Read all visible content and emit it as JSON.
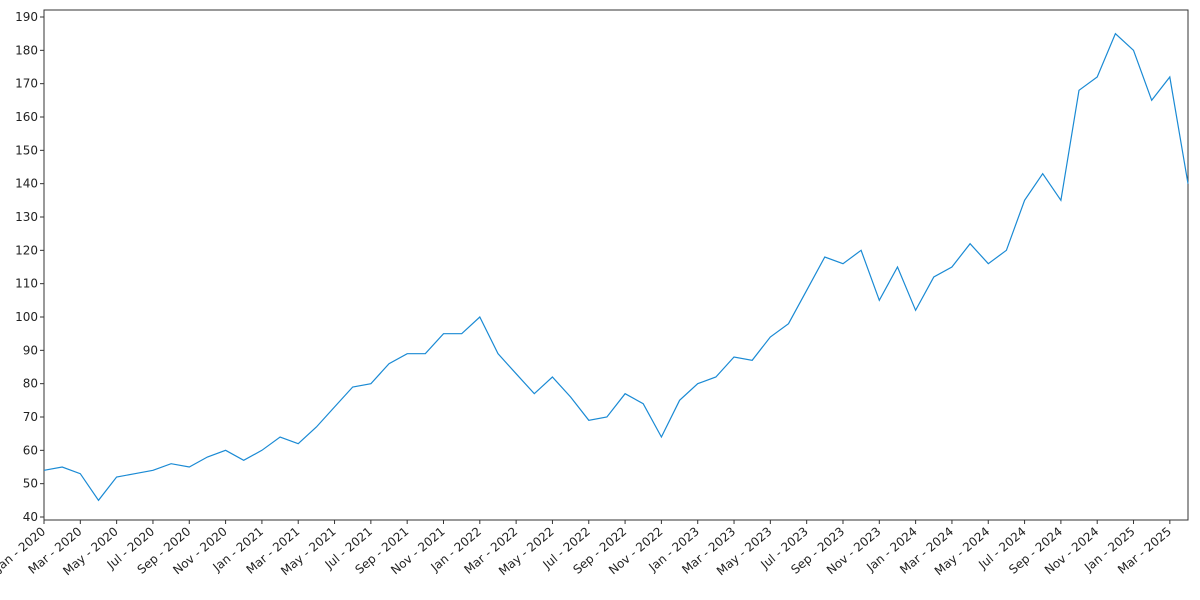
{
  "chart_data": {
    "type": "line",
    "color": "#1a8ad4",
    "x": [
      "2020-01",
      "2020-02",
      "2020-03",
      "2020-04",
      "2020-05",
      "2020-06",
      "2020-07",
      "2020-08",
      "2020-09",
      "2020-10",
      "2020-11",
      "2020-12",
      "2021-01",
      "2021-02",
      "2021-03",
      "2021-04",
      "2021-05",
      "2021-06",
      "2021-07",
      "2021-08",
      "2021-09",
      "2021-10",
      "2021-11",
      "2021-12",
      "2022-01",
      "2022-02",
      "2022-03",
      "2022-04",
      "2022-05",
      "2022-06",
      "2022-07",
      "2022-08",
      "2022-09",
      "2022-10",
      "2022-11",
      "2022-12",
      "2023-01",
      "2023-02",
      "2023-03",
      "2023-04",
      "2023-05",
      "2023-06",
      "2023-07",
      "2023-08",
      "2023-09",
      "2023-10",
      "2023-11",
      "2023-12",
      "2024-01",
      "2024-02",
      "2024-03",
      "2024-04",
      "2024-05",
      "2024-06",
      "2024-07",
      "2024-08",
      "2024-09",
      "2024-10",
      "2024-11",
      "2024-12",
      "2025-01",
      "2025-02",
      "2025-03",
      "2025-04"
    ],
    "values": [
      54,
      55,
      53,
      45,
      52,
      53,
      54,
      56,
      55,
      58,
      60,
      57,
      60,
      64,
      62,
      67,
      73,
      79,
      80,
      86,
      89,
      89,
      95,
      95,
      100,
      89,
      83,
      77,
      82,
      76,
      69,
      70,
      77,
      74,
      64,
      75,
      80,
      82,
      88,
      87,
      94,
      98,
      108,
      118,
      116,
      120,
      105,
      115,
      102,
      112,
      115,
      122,
      116,
      120,
      135,
      143,
      135,
      168,
      172,
      185,
      180,
      165,
      172,
      140
    ],
    "xlim": [
      "2020-01",
      "2025-04"
    ],
    "xticks": [
      {
        "value": "2020-01",
        "label": "Jan - 2020"
      },
      {
        "value": "2020-03",
        "label": "Mar - 2020"
      },
      {
        "value": "2020-05",
        "label": "May - 2020"
      },
      {
        "value": "2020-07",
        "label": "Jul - 2020"
      },
      {
        "value": "2020-09",
        "label": "Sep - 2020"
      },
      {
        "value": "2020-11",
        "label": "Nov - 2020"
      },
      {
        "value": "2021-01",
        "label": "Jan - 2021"
      },
      {
        "value": "2021-03",
        "label": "Mar - 2021"
      },
      {
        "value": "2021-05",
        "label": "May - 2021"
      },
      {
        "value": "2021-07",
        "label": "Jul - 2021"
      },
      {
        "value": "2021-09",
        "label": "Sep - 2021"
      },
      {
        "value": "2021-11",
        "label": "Nov - 2021"
      },
      {
        "value": "2022-01",
        "label": "Jan - 2022"
      },
      {
        "value": "2022-03",
        "label": "Mar - 2022"
      },
      {
        "value": "2022-05",
        "label": "May - 2022"
      },
      {
        "value": "2022-07",
        "label": "Jul - 2022"
      },
      {
        "value": "2022-09",
        "label": "Sep - 2022"
      },
      {
        "value": "2022-11",
        "label": "Nov - 2022"
      },
      {
        "value": "2023-01",
        "label": "Jan - 2023"
      },
      {
        "value": "2023-03",
        "label": "Mar - 2023"
      },
      {
        "value": "2023-05",
        "label": "May - 2023"
      },
      {
        "value": "2023-07",
        "label": "Jul - 2023"
      },
      {
        "value": "2023-09",
        "label": "Sep - 2023"
      },
      {
        "value": "2023-11",
        "label": "Nov - 2023"
      },
      {
        "value": "2024-01",
        "label": "Jan - 2024"
      },
      {
        "value": "2024-03",
        "label": "Mar - 2024"
      },
      {
        "value": "2024-05",
        "label": "May - 2024"
      },
      {
        "value": "2024-07",
        "label": "Jul - 2024"
      },
      {
        "value": "2024-09",
        "label": "Sep - 2024"
      },
      {
        "value": "2024-11",
        "label": "Nov - 2024"
      },
      {
        "value": "2025-01",
        "label": "Jan - 2025"
      },
      {
        "value": "2025-03",
        "label": "Mar - 2025"
      }
    ],
    "ylim": [
      39.1,
      192.1
    ],
    "yticks": [
      40,
      50,
      60,
      70,
      80,
      90,
      100,
      110,
      120,
      130,
      140,
      150,
      160,
      170,
      180,
      190
    ],
    "grid": false
  }
}
